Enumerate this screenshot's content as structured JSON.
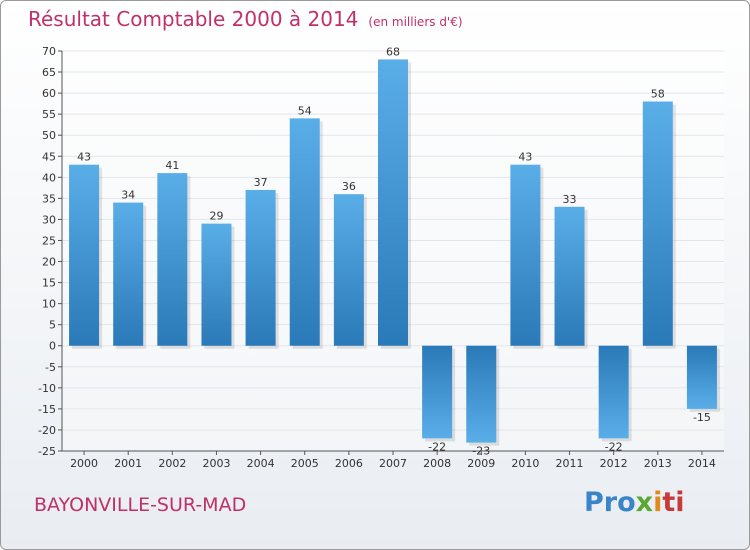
{
  "page": {
    "title": "Résultat Comptable 2000 à 2014",
    "unit": "(en milliers d'€)",
    "commune": "BAYONVILLE-SUR-MAD",
    "logo": {
      "p1": "Pro",
      "p2": "x",
      "p3": "i",
      "p4": "ti"
    }
  },
  "colors": {
    "title": "#c0306a",
    "bar_light": "#5aaee8",
    "bar_dark": "#2a79b8",
    "grid": "#e2e6eb"
  },
  "chart_data": {
    "type": "bar",
    "title": "Résultat Comptable 2000 à 2014",
    "subtitle": "(en milliers d'€)",
    "xlabel": "",
    "ylabel": "",
    "categories": [
      "2000",
      "2001",
      "2002",
      "2003",
      "2004",
      "2005",
      "2006",
      "2007",
      "2008",
      "2009",
      "2010",
      "2011",
      "2012",
      "2013",
      "2014"
    ],
    "values": [
      43,
      34,
      41,
      29,
      37,
      54,
      36,
      68,
      -22,
      -23,
      43,
      33,
      -22,
      58,
      -15
    ],
    "ylim": [
      -25,
      70
    ],
    "yticks": [
      70,
      65,
      60,
      55,
      50,
      45,
      40,
      35,
      30,
      25,
      20,
      15,
      10,
      5,
      0,
      -5,
      -10,
      -15,
      -20,
      -25
    ],
    "grid": true
  }
}
